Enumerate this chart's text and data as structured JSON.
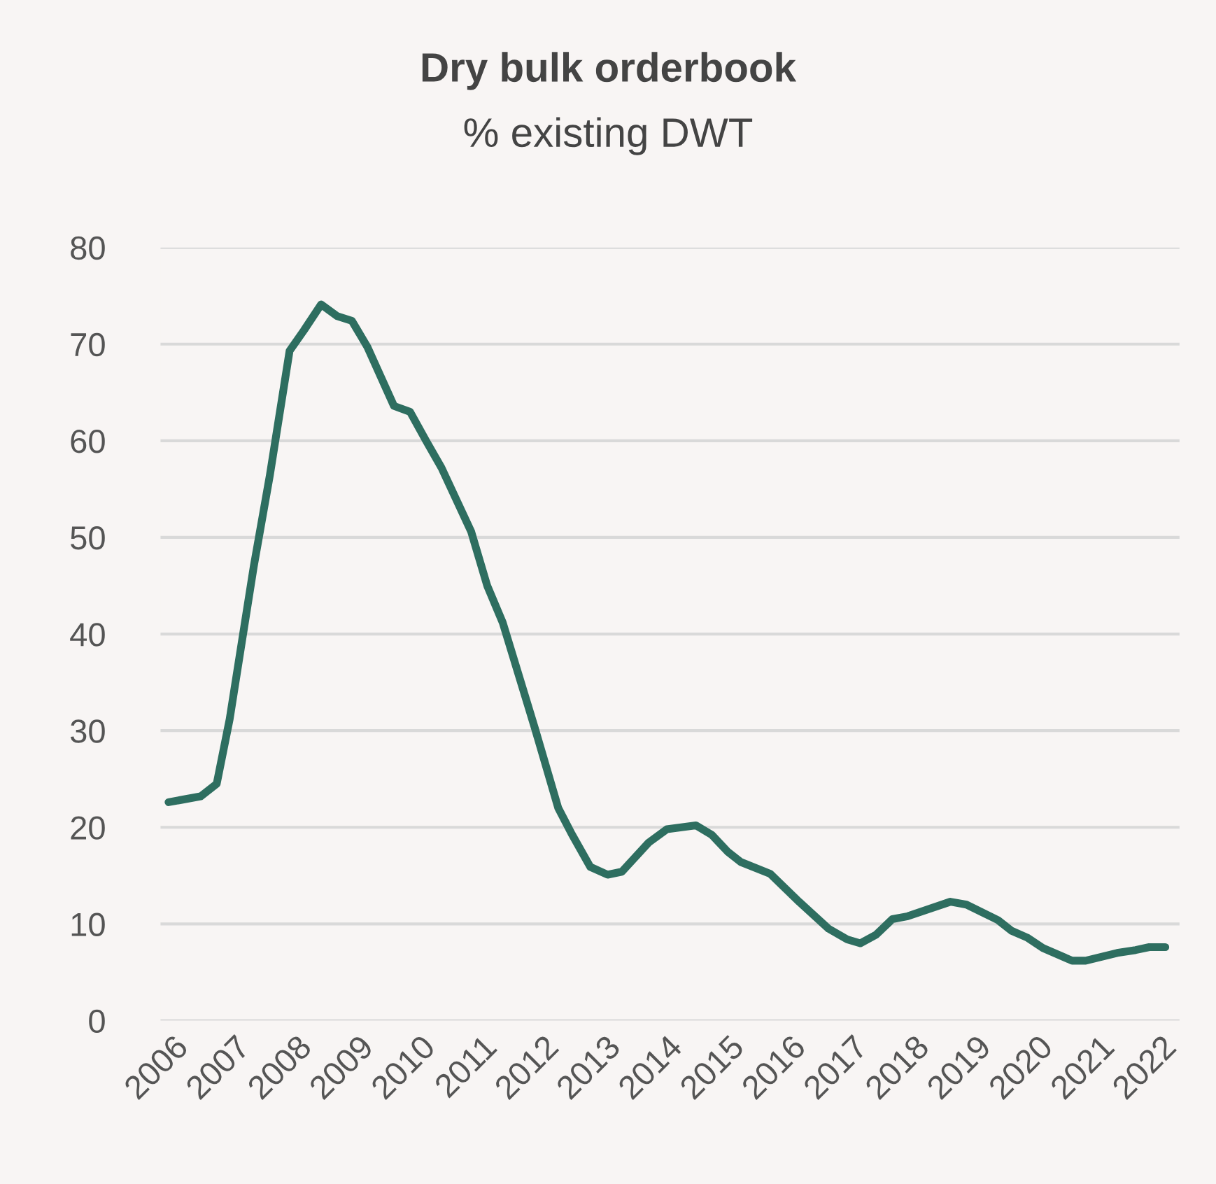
{
  "chart_data": {
    "type": "line",
    "title": "Dry bulk orderbook",
    "subtitle": "% existing DWT",
    "x": [
      2005.93,
      2006.45,
      2006.71,
      2006.92,
      2007.09,
      2007.31,
      2007.57,
      2007.89,
      2008.12,
      2008.4,
      2008.66,
      2008.9,
      2009.15,
      2009.58,
      2009.84,
      2010.1,
      2010.35,
      2010.83,
      2011.09,
      2011.34,
      2011.86,
      2012.24,
      2012.46,
      2012.76,
      2013.04,
      2013.27,
      2013.7,
      2014.0,
      2014.47,
      2014.73,
      2014.98,
      2015.2,
      2015.67,
      2016.14,
      2016.62,
      2016.92,
      2017.13,
      2017.39,
      2017.65,
      2017.9,
      2018.59,
      2018.85,
      2019.36,
      2019.58,
      2019.83,
      2020.09,
      2020.56,
      2020.78,
      2021.29,
      2021.59,
      2021.81,
      2022.07
    ],
    "series": [
      {
        "color": "#2e6e60",
        "values": [
          22.6,
          23.2,
          24.5,
          31.2,
          38.1,
          47,
          56.4,
          69.3,
          71.4,
          74.1,
          72.9,
          72.4,
          69.7,
          63.6,
          63,
          60,
          57.2,
          50.6,
          45,
          41.2,
          30.3,
          22,
          19.3,
          15.9,
          15.1,
          15.4,
          18.4,
          19.8,
          20.2,
          19.2,
          17.5,
          16.4,
          15.2,
          12.3,
          9.5,
          8.4,
          8.0,
          8.9,
          10.5,
          10.8,
          12.3,
          12.0,
          10.4,
          9.3,
          8.6,
          7.5,
          6.2,
          6.2,
          7.0,
          7.3,
          7.6,
          7.6
        ]
      }
    ],
    "xlim": [
      2005.8,
      2022.3
    ],
    "xticks": [
      2006,
      2007,
      2008,
      2009,
      2010,
      2011,
      2012,
      2013,
      2014,
      2015,
      2016,
      2017,
      2018,
      2019,
      2020,
      2021,
      2022
    ],
    "ylim": [
      0,
      80
    ],
    "yticks": [
      0,
      10,
      20,
      30,
      40,
      50,
      60,
      70,
      80
    ],
    "grid": "y",
    "marker": "none",
    "line_style": "solid"
  }
}
